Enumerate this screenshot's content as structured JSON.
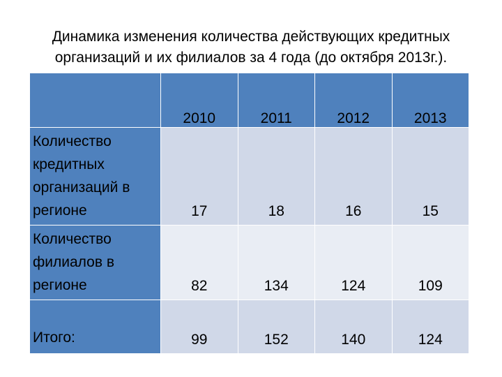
{
  "title": {
    "line1": "Динамика изменения количества действующих кредитных",
    "line2": "организаций и их филиалов за 4 года (до октября 2013г.)."
  },
  "table": {
    "corner": "",
    "years": [
      "2010",
      "2011",
      "2012",
      "2013"
    ],
    "rows": [
      {
        "label": "Количество кредитных организаций в регионе",
        "values": [
          "17",
          "18",
          "16",
          "15"
        ]
      },
      {
        "label": "Количество филиалов в регионе",
        "values": [
          "82",
          "134",
          "124",
          "109"
        ]
      },
      {
        "label": "Итого:",
        "values": [
          "99",
          "152",
          "140",
          "124"
        ]
      }
    ]
  },
  "colors": {
    "header_blue": "#4f81bd",
    "cell_light": "#d0d8e8",
    "cell_lighter": "#e9edf4"
  }
}
